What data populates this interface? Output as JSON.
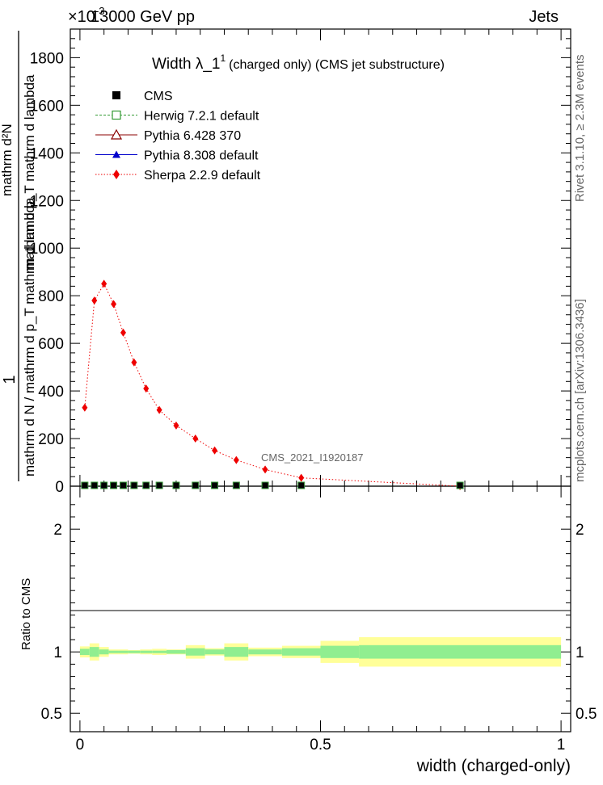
{
  "header": {
    "beam": "13000 GeV pp",
    "process": "Jets",
    "exponent_label": "×10",
    "exponent_power": "-3",
    "rivet_label": "Rivet 3.1.10, ≥ 2.3M events",
    "mcplots_label": "mcplots.cern.ch [arXiv:1306.3436]",
    "analysis_id": "CMS_2021_I1920187"
  },
  "main_panel": {
    "title_main": "Width λ_1",
    "title_sup": "1",
    "title_sub": "(charged only) (CMS jet substructure)",
    "ylabel_numerator": "1",
    "ylabel_denominator": "mathrm d N / mathrm d p_T  mathrm d lambda",
    "ylabel_top": "mathrm d²N",
    "ylabel_top2": "mathrm d p_T  mathrm d lambda"
  },
  "ratio_panel": {
    "ylabel": "Ratio to CMS",
    "xlabel": "width (charged-only)"
  },
  "legend": [
    {
      "name": "CMS",
      "marker": "filled-square",
      "color": "#000000",
      "line": "none"
    },
    {
      "name": "Herwig 7.2.1 default",
      "marker": "open-square",
      "color": "#339933",
      "line": "dashed"
    },
    {
      "name": "Pythia 6.428 370",
      "marker": "open-triangle",
      "color": "#8b0000",
      "line": "solid"
    },
    {
      "name": "Pythia 8.308 default",
      "marker": "filled-triangle",
      "color": "#0000cc",
      "line": "solid"
    },
    {
      "name": "Sherpa 2.2.9 default",
      "marker": "filled-diamond",
      "color": "#ee0000",
      "line": "dotted"
    }
  ],
  "chart_data": {
    "type": "line",
    "x_axis": {
      "range": [
        -0.02,
        1.02
      ],
      "ticks": [
        0,
        0.5,
        1
      ],
      "tick_labels": [
        "0",
        "0.5",
        "1"
      ]
    },
    "y_axis": {
      "range": [
        0,
        1.92
      ],
      "ticks": [
        0,
        0.2,
        0.4,
        0.6,
        0.8,
        1.0,
        1.2,
        1.4,
        1.6,
        1.8
      ],
      "tick_labels": [
        "0",
        "200",
        "400",
        "600",
        "800",
        "1000",
        "1200",
        "1400",
        "1600",
        "1800"
      ]
    },
    "ratio_axis": {
      "range": [
        0.35,
        2.35
      ],
      "ticks": [
        0.5,
        1,
        2
      ],
      "tick_labels": [
        "0.5",
        "1",
        "2"
      ]
    },
    "cms_bins": [
      {
        "lo": 0.0,
        "hi": 0.02,
        "stat": 0.025,
        "tot": 0.045
      },
      {
        "lo": 0.02,
        "hi": 0.04,
        "stat": 0.04,
        "tot": 0.07
      },
      {
        "lo": 0.04,
        "hi": 0.06,
        "stat": 0.02,
        "tot": 0.04
      },
      {
        "lo": 0.06,
        "hi": 0.08,
        "stat": 0.01,
        "tot": 0.02
      },
      {
        "lo": 0.08,
        "hi": 0.1,
        "stat": 0.01,
        "tot": 0.02
      },
      {
        "lo": 0.1,
        "hi": 0.125,
        "stat": 0.01,
        "tot": 0.015
      },
      {
        "lo": 0.125,
        "hi": 0.15,
        "stat": 0.01,
        "tot": 0.02
      },
      {
        "lo": 0.15,
        "hi": 0.18,
        "stat": 0.01,
        "tot": 0.025
      },
      {
        "lo": 0.18,
        "hi": 0.22,
        "stat": 0.015,
        "tot": 0.02
      },
      {
        "lo": 0.22,
        "hi": 0.26,
        "stat": 0.03,
        "tot": 0.055
      },
      {
        "lo": 0.26,
        "hi": 0.3,
        "stat": 0.02,
        "tot": 0.03
      },
      {
        "lo": 0.3,
        "hi": 0.35,
        "stat": 0.04,
        "tot": 0.07
      },
      {
        "lo": 0.35,
        "hi": 0.42,
        "stat": 0.02,
        "tot": 0.035
      },
      {
        "lo": 0.42,
        "hi": 0.5,
        "stat": 0.03,
        "tot": 0.05
      },
      {
        "lo": 0.5,
        "hi": 0.58,
        "stat": 0.05,
        "tot": 0.09
      },
      {
        "lo": 0.58,
        "hi": 1.0,
        "stat": 0.055,
        "tot": 0.12
      }
    ],
    "series": [
      {
        "name": "Sherpa 2.2.9 default",
        "x": [
          0.01,
          0.03,
          0.05,
          0.07,
          0.09,
          0.1125,
          0.1375,
          0.165,
          0.2,
          0.24,
          0.28,
          0.325,
          0.385,
          0.46,
          0.79
        ],
        "y": [
          0.33,
          0.78,
          0.85,
          0.765,
          0.645,
          0.52,
          0.41,
          0.32,
          0.255,
          0.2,
          0.15,
          0.11,
          0.07,
          0.035,
          0.0
        ]
      },
      {
        "name": "CMS",
        "x": [
          0.01,
          0.03,
          0.05,
          0.07,
          0.09,
          0.1125,
          0.1375,
          0.165,
          0.2,
          0.24,
          0.28,
          0.325,
          0.385,
          0.46,
          0.79
        ],
        "y": [
          0.0,
          0.0,
          0.0,
          0.0,
          0.0,
          0.0,
          0.0,
          0.0,
          0.0,
          0.0,
          0.0,
          0.0,
          0.0,
          0.0,
          0.0
        ]
      }
    ]
  }
}
